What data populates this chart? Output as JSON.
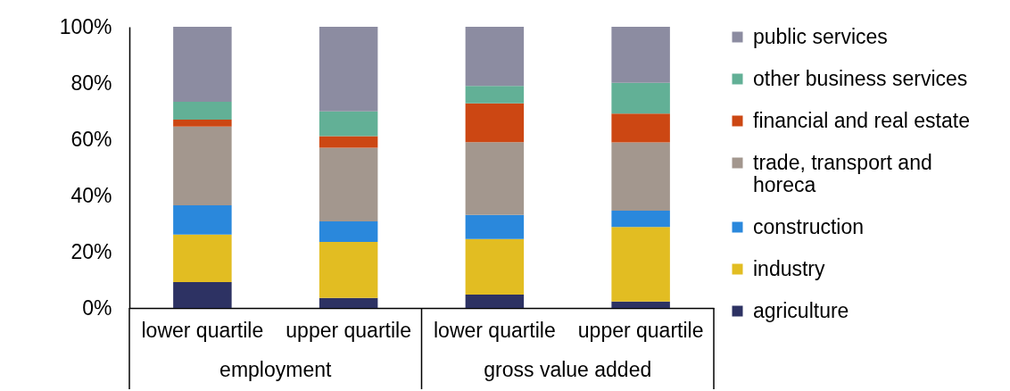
{
  "chart_data": {
    "type": "bar",
    "stacked": true,
    "categories": [
      "lower quartile",
      "upper quartile",
      "lower quartile",
      "upper quartile"
    ],
    "annotations": [
      "employment",
      "gross value added"
    ],
    "series": [
      {
        "name": "agriculture",
        "color": "#2d3263",
        "values": [
          9.2,
          3.6,
          4.8,
          2.3
        ]
      },
      {
        "name": "industry",
        "color": "#e2bd22",
        "values": [
          16.9,
          19.9,
          19.7,
          26.5
        ]
      },
      {
        "name": "construction",
        "color": "#2a88dc",
        "values": [
          10.4,
          7.3,
          8.6,
          5.8
        ]
      },
      {
        "name": "trade, transport and horeca",
        "color": "#a3978e",
        "values": [
          28.0,
          26.2,
          25.9,
          24.3
        ]
      },
      {
        "name": "financial and real estate",
        "color": "#cc4713",
        "values": [
          2.5,
          4.1,
          13.8,
          10.2
        ]
      },
      {
        "name": "other business services",
        "color": "#62b096",
        "values": [
          6.3,
          8.8,
          6.2,
          11.0
        ]
      },
      {
        "name": "public services",
        "color": "#8c8ca1",
        "values": [
          26.7,
          30.1,
          21.0,
          19.9
        ]
      }
    ],
    "ylim": [
      0,
      100
    ],
    "yticks": [
      {
        "value": 0,
        "label": "0%"
      },
      {
        "value": 20,
        "label": "20%"
      },
      {
        "value": 40,
        "label": "40%"
      },
      {
        "value": 60,
        "label": "60%"
      },
      {
        "value": 80,
        "label": "80%"
      },
      {
        "value": 100,
        "label": "100%"
      }
    ],
    "legend": "right"
  }
}
